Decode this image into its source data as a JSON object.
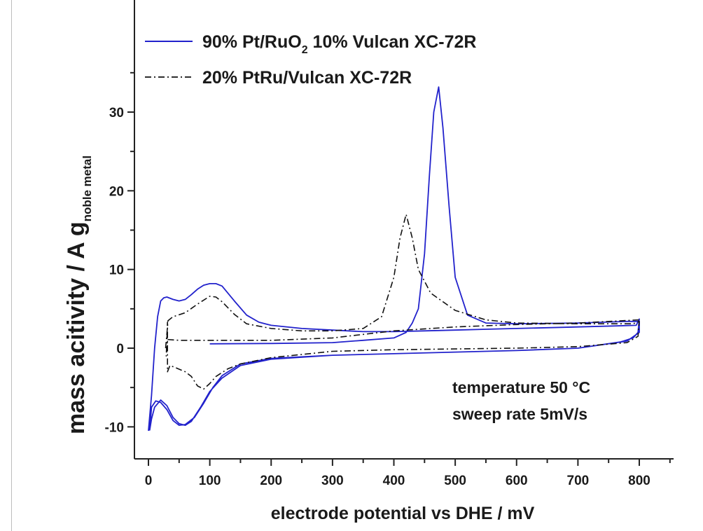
{
  "chart_data": {
    "type": "line",
    "xlabel": "electrode potential vs DHE / mV",
    "ylabel_main": "mass acitivity / A g",
    "ylabel_sub": "noble metal",
    "xlim": [
      -20,
      960
    ],
    "ylim": [
      -12.3,
      35.5
    ],
    "xticks": [
      0,
      100,
      200,
      300,
      400,
      500,
      600,
      700,
      800
    ],
    "yticks": [
      -10,
      0,
      10,
      20,
      30
    ],
    "xtick_labels": [
      "0",
      "100",
      "200",
      "300",
      "400",
      "500",
      "600",
      "700",
      "800"
    ],
    "ytick_labels": [
      "-10",
      "0",
      "10",
      "20",
      "30"
    ],
    "legend_position": "top",
    "legend": [
      {
        "label_a": "90% Pt/RuO",
        "label_sub": "2",
        "label_b": " 10% Vulcan XC-72R",
        "style": "solid",
        "color": "#2222cc"
      },
      {
        "label": "20% PtRu/Vulcan XC-72R",
        "style": "dash-dot",
        "color": "#111111"
      }
    ],
    "annotations": [
      "temperature 50 °C",
      "sweep rate 5mV/s"
    ],
    "series": [
      {
        "name": "90% Pt/RuO2 10% Vulcan XC-72R",
        "color": "#2222cc",
        "style": "solid",
        "points": [
          [
            0,
            -10.5
          ],
          [
            5,
            -6
          ],
          [
            10,
            0
          ],
          [
            15,
            4
          ],
          [
            20,
            6
          ],
          [
            25,
            6.4
          ],
          [
            30,
            6.5
          ],
          [
            40,
            6.2
          ],
          [
            50,
            6
          ],
          [
            60,
            6.2
          ],
          [
            70,
            6.8
          ],
          [
            80,
            7.5
          ],
          [
            90,
            8
          ],
          [
            100,
            8.2
          ],
          [
            110,
            8.2
          ],
          [
            120,
            7.9
          ],
          [
            140,
            6
          ],
          [
            160,
            4.2
          ],
          [
            180,
            3.3
          ],
          [
            200,
            2.9
          ],
          [
            250,
            2.5
          ],
          [
            300,
            2.3
          ],
          [
            350,
            2.1
          ],
          [
            400,
            2.1
          ],
          [
            450,
            2.2
          ],
          [
            500,
            2.3
          ],
          [
            550,
            2.4
          ],
          [
            600,
            2.5
          ],
          [
            700,
            2.7
          ],
          [
            795,
            2.9
          ],
          [
            800,
            3.7
          ],
          [
            798,
            2
          ],
          [
            790,
            1.3
          ],
          [
            770,
            0.8
          ],
          [
            700,
            0
          ],
          [
            600,
            -0.3
          ],
          [
            500,
            -0.5
          ],
          [
            400,
            -0.7
          ],
          [
            300,
            -0.9
          ],
          [
            200,
            -1.4
          ],
          [
            150,
            -2.2
          ],
          [
            120,
            -3.8
          ],
          [
            100,
            -5.5
          ],
          [
            85,
            -7.5
          ],
          [
            70,
            -9.3
          ],
          [
            60,
            -9.8
          ],
          [
            50,
            -9.6
          ],
          [
            40,
            -8.8
          ],
          [
            30,
            -7.3
          ],
          [
            20,
            -6.6
          ],
          [
            10,
            -7.5
          ],
          [
            5,
            -9
          ],
          [
            2,
            -10.4
          ],
          [
            5,
            -7.5
          ],
          [
            12,
            -6.7
          ],
          [
            20,
            -6.9
          ],
          [
            30,
            -7.8
          ],
          [
            40,
            -9.2
          ],
          [
            50,
            -9.8
          ],
          [
            60,
            -9.7
          ],
          [
            75,
            -8.8
          ],
          [
            90,
            -7
          ],
          [
            105,
            -5
          ],
          [
            120,
            -3.5
          ],
          [
            150,
            -2
          ],
          [
            200,
            -1.3
          ],
          [
            300,
            -0.9
          ],
          [
            400,
            -0.7
          ],
          [
            500,
            -0.5
          ],
          [
            600,
            -0.3
          ],
          [
            700,
            0
          ],
          [
            780,
            0.9
          ],
          [
            800,
            2
          ],
          [
            800,
            3.4
          ],
          [
            780,
            3.4
          ],
          [
            700,
            3.2
          ],
          [
            600,
            3.1
          ],
          [
            550,
            3.2
          ],
          [
            520,
            4.2
          ],
          [
            500,
            9
          ],
          [
            490,
            18
          ],
          [
            480,
            28
          ],
          [
            473,
            33.2
          ],
          [
            465,
            30
          ],
          [
            458,
            22
          ],
          [
            450,
            12
          ],
          [
            440,
            5
          ],
          [
            430,
            3.2
          ],
          [
            420,
            2
          ],
          [
            400,
            1.3
          ],
          [
            350,
            1
          ],
          [
            300,
            0.7
          ],
          [
            200,
            0.6
          ],
          [
            100,
            0.55
          ]
        ]
      },
      {
        "name": "20% PtRu/Vulcan XC-72R",
        "color": "#111111",
        "style": "dash-dot",
        "points": [
          [
            28,
            0
          ],
          [
            32,
            3.5
          ],
          [
            40,
            4
          ],
          [
            60,
            4.5
          ],
          [
            80,
            5.6
          ],
          [
            100,
            6.6
          ],
          [
            110,
            6.5
          ],
          [
            120,
            5.9
          ],
          [
            140,
            4.3
          ],
          [
            160,
            3.1
          ],
          [
            200,
            2.5
          ],
          [
            250,
            2.2
          ],
          [
            300,
            2.2
          ],
          [
            350,
            2.5
          ],
          [
            380,
            4
          ],
          [
            400,
            9
          ],
          [
            410,
            14
          ],
          [
            420,
            17
          ],
          [
            430,
            14
          ],
          [
            440,
            10
          ],
          [
            460,
            7
          ],
          [
            500,
            4.8
          ],
          [
            550,
            3.6
          ],
          [
            600,
            3.2
          ],
          [
            700,
            3.1
          ],
          [
            790,
            3.1
          ],
          [
            800,
            3.4
          ],
          [
            798,
            1.5
          ],
          [
            780,
            0.7
          ],
          [
            700,
            0.2
          ],
          [
            600,
            0
          ],
          [
            500,
            -0.1
          ],
          [
            400,
            -0.2
          ],
          [
            300,
            -0.4
          ],
          [
            200,
            -1.2
          ],
          [
            150,
            -2
          ],
          [
            130,
            -2.6
          ],
          [
            110,
            -3.6
          ],
          [
            100,
            -4.5
          ],
          [
            90,
            -5.2
          ],
          [
            80,
            -4.8
          ],
          [
            70,
            -3.6
          ],
          [
            60,
            -3
          ],
          [
            45,
            -2.5
          ],
          [
            35,
            -2.2
          ],
          [
            31,
            -3
          ],
          [
            31,
            3.3
          ],
          [
            29,
            -1
          ],
          [
            31,
            1.1
          ],
          [
            50,
            1
          ],
          [
            100,
            1
          ],
          [
            200,
            1
          ],
          [
            300,
            1.3
          ],
          [
            400,
            2.2
          ],
          [
            500,
            2.7
          ],
          [
            600,
            3
          ],
          [
            700,
            3.2
          ],
          [
            800,
            3.6
          ]
        ]
      }
    ]
  }
}
